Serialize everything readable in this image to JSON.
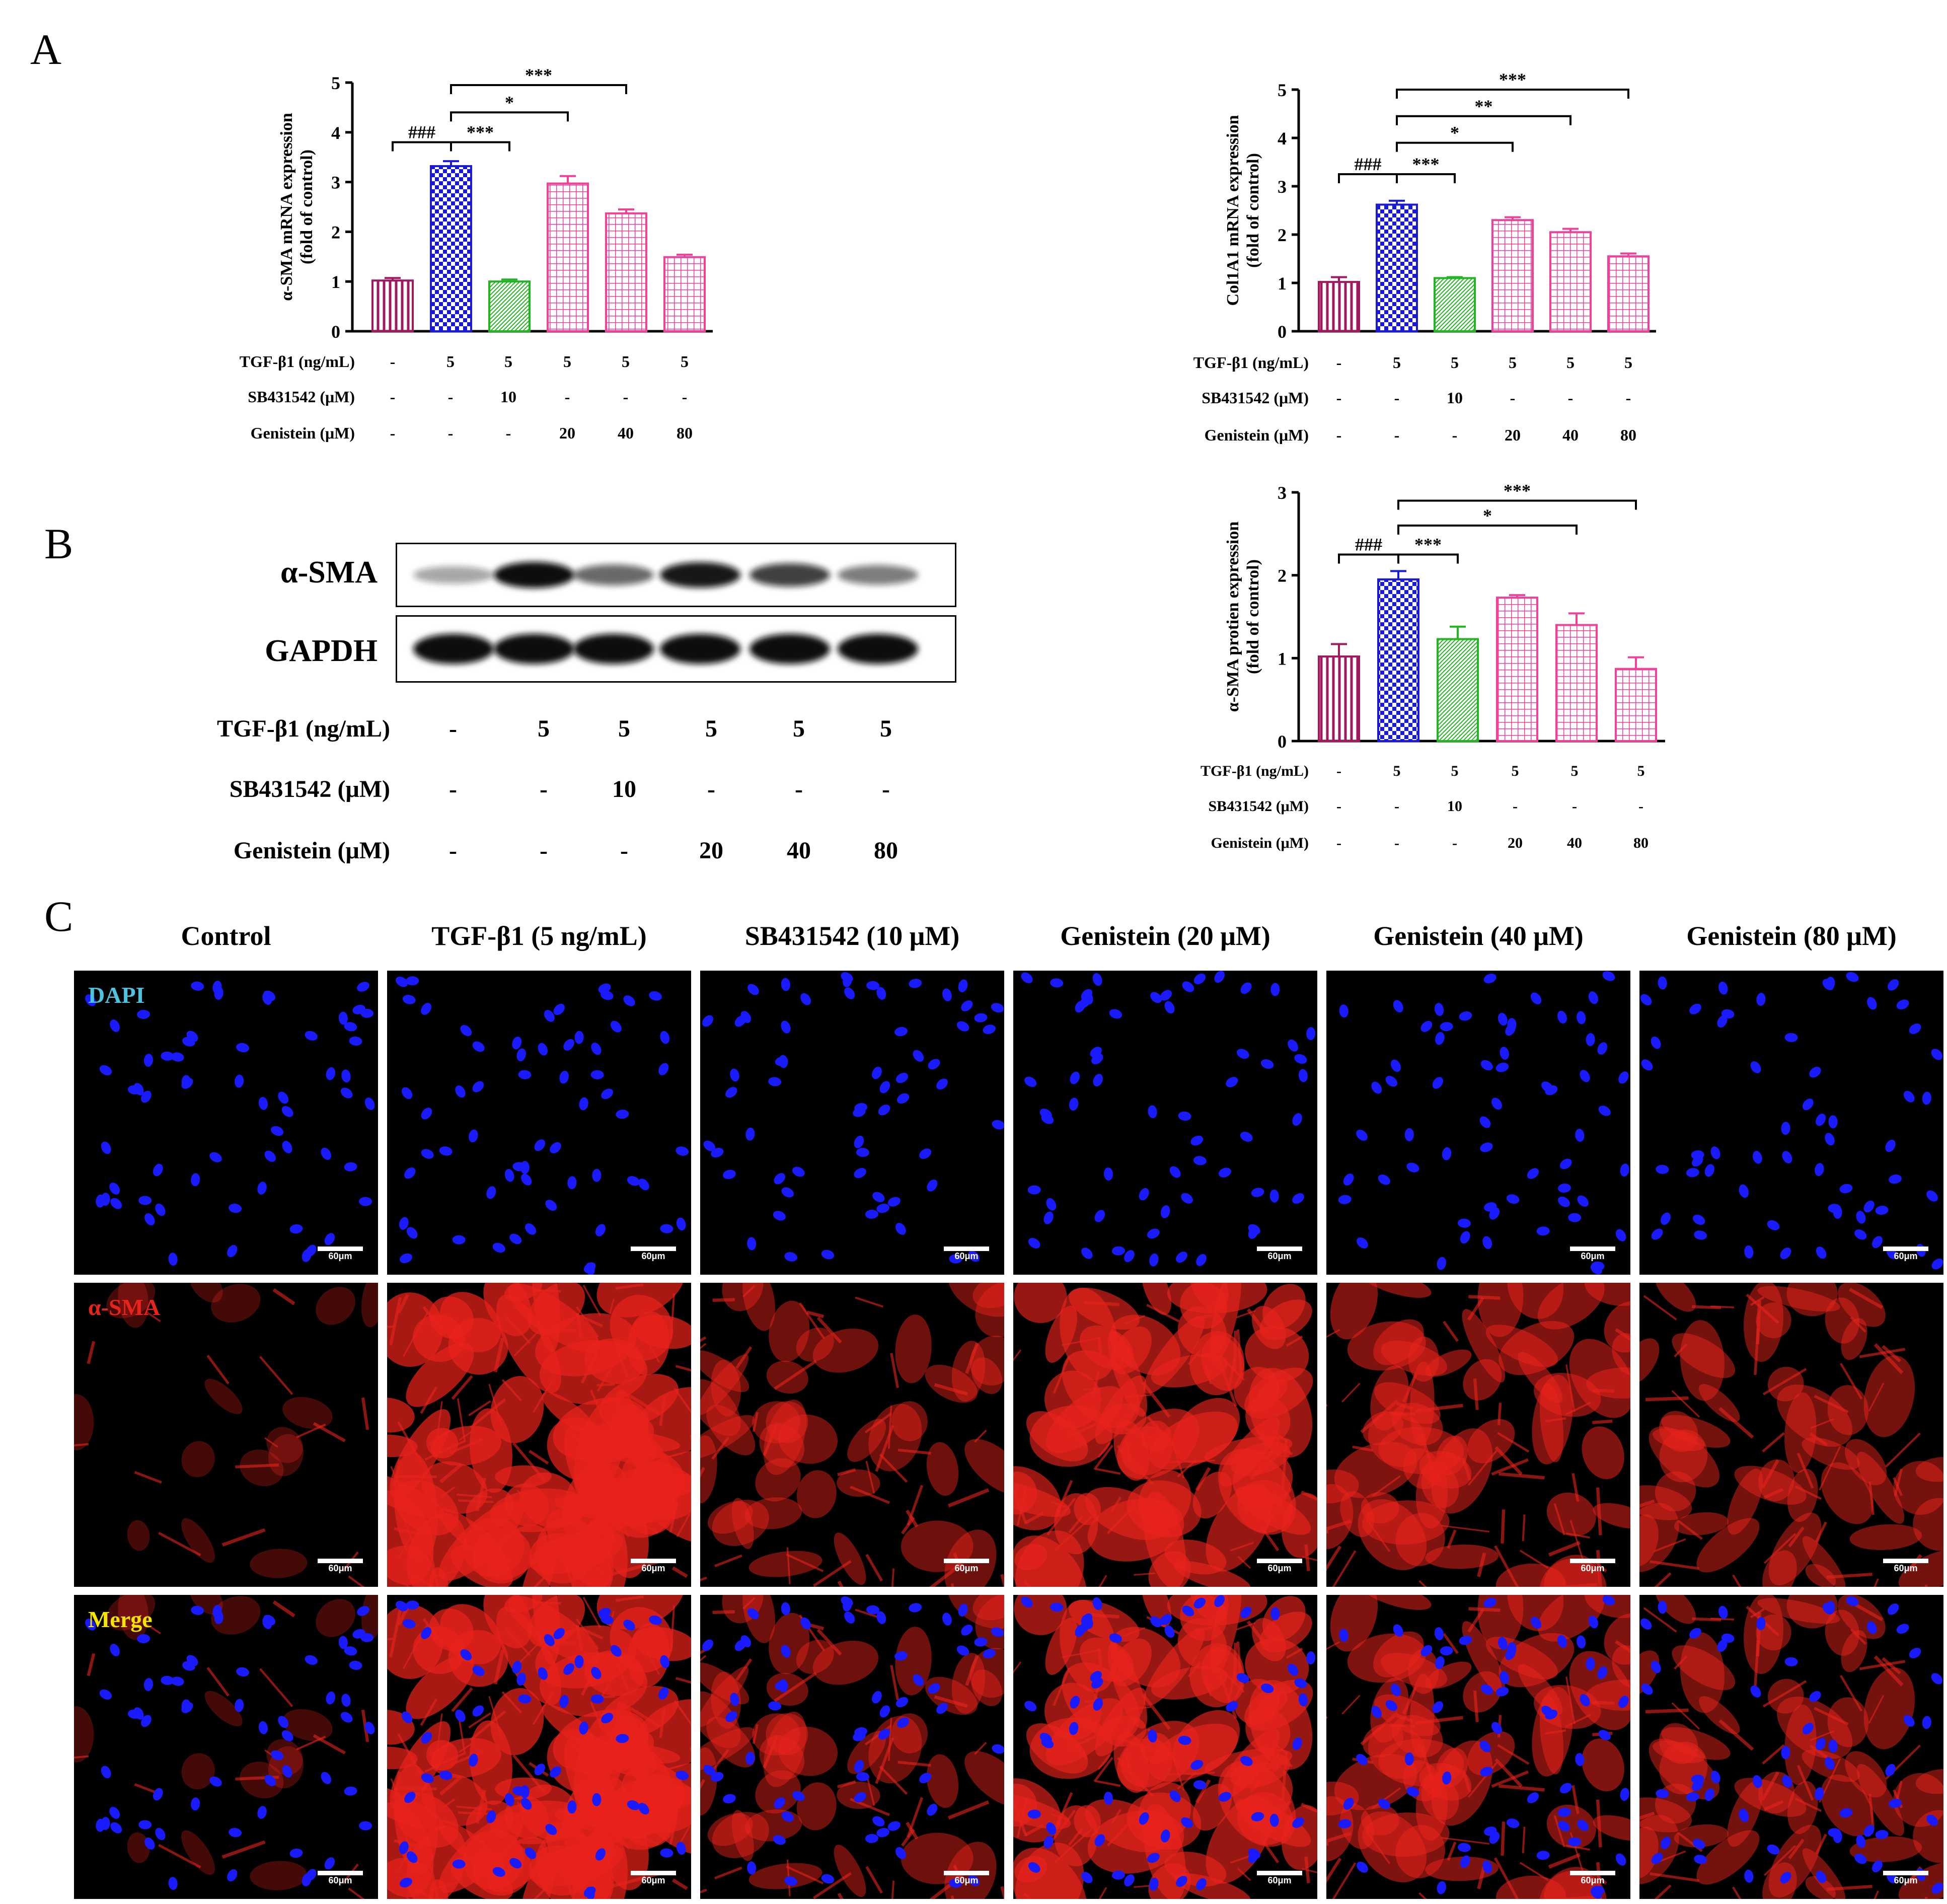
{
  "panels": {
    "a": "A",
    "b": "B",
    "c": "C"
  },
  "colors": {
    "control": "#a0185e",
    "tgf": "#1a1ad6",
    "sb": "#22b422",
    "gen": "#f0409a",
    "dapi_nucleus": "#1a1aff",
    "sma_red": "#e8231c",
    "dapi_label": "#4ec3e0",
    "sma_label": "#e8231c",
    "merge_label": "#f5e400"
  },
  "conditions": {
    "labels": [
      "TGF-β1 (ng/mL)",
      "SB431542 (μM)",
      "Genistein (μM)"
    ],
    "tgf": [
      "-",
      "5",
      "5",
      "5",
      "5",
      "5"
    ],
    "sb": [
      "-",
      "-",
      "10",
      "-",
      "-",
      "-"
    ],
    "gen": [
      "-",
      "-",
      "-",
      "20",
      "40",
      "80"
    ]
  },
  "chart_data": [
    {
      "id": "asma-mrna",
      "type": "bar",
      "ylabel": "α-SMA mRNA expression",
      "ylabel2": "(fold of control)",
      "ylim": [
        0,
        5
      ],
      "yticks": [
        0,
        1,
        2,
        3,
        4,
        5
      ],
      "values": [
        1.02,
        3.32,
        1.0,
        2.97,
        2.37,
        1.49
      ],
      "errors": [
        0.05,
        0.1,
        0.04,
        0.15,
        0.08,
        0.05
      ],
      "annotations": [
        {
          "from": 0,
          "to": 1,
          "y": 3.8,
          "label": "###"
        },
        {
          "from": 1,
          "to": 2,
          "y": 3.8,
          "label": "***"
        },
        {
          "from": 1,
          "to": 3,
          "y": 4.4,
          "label": "*"
        },
        {
          "from": 1,
          "to": 4,
          "y": 4.95,
          "label": "***"
        }
      ]
    },
    {
      "id": "col1a1-mrna",
      "type": "bar",
      "ylabel": "Col1A1 mRNA expression",
      "ylabel2": "(fold of control)",
      "ylim": [
        0,
        5
      ],
      "yticks": [
        0,
        1,
        2,
        3,
        4,
        5
      ],
      "values": [
        1.02,
        2.62,
        1.1,
        2.3,
        2.05,
        1.55
      ],
      "errors": [
        0.1,
        0.08,
        0.02,
        0.06,
        0.07,
        0.06
      ],
      "annotations": [
        {
          "from": 0,
          "to": 1,
          "y": 3.25,
          "label": "###"
        },
        {
          "from": 1,
          "to": 2,
          "y": 3.25,
          "label": "***"
        },
        {
          "from": 1,
          "to": 3,
          "y": 3.9,
          "label": "*"
        },
        {
          "from": 1,
          "to": 4,
          "y": 4.45,
          "label": "**"
        },
        {
          "from": 1,
          "to": 5,
          "y": 5.0,
          "label": "***"
        }
      ]
    },
    {
      "id": "asma-protein",
      "type": "bar",
      "ylabel": "α-SMA protien expression",
      "ylabel2": "(fold of control)",
      "ylim": [
        0,
        3
      ],
      "yticks": [
        0,
        1,
        2,
        3
      ],
      "values": [
        1.02,
        1.95,
        1.23,
        1.73,
        1.4,
        0.87
      ],
      "errors": [
        0.15,
        0.1,
        0.15,
        0.03,
        0.14,
        0.14
      ],
      "annotations": [
        {
          "from": 0,
          "to": 1,
          "y": 2.25,
          "label": "###"
        },
        {
          "from": 1,
          "to": 2,
          "y": 2.25,
          "label": "***"
        },
        {
          "from": 1,
          "to": 4,
          "y": 2.6,
          "label": "*"
        },
        {
          "from": 1,
          "to": 5,
          "y": 2.9,
          "label": "***"
        }
      ]
    }
  ],
  "blot": {
    "rows": [
      "α-SMA",
      "GAPDH"
    ],
    "asma_intensity": [
      0.25,
      1.0,
      0.55,
      0.95,
      0.75,
      0.45
    ],
    "gapdh_intensity": [
      1.0,
      1.0,
      1.0,
      1.0,
      1.0,
      1.0
    ]
  },
  "micro": {
    "columns": [
      "Control",
      "TGF-β1 (5 ng/mL)",
      "SB431542 (10 μM)",
      "Genistein (20 μM)",
      "Genistein (40 μM)",
      "Genistein (80 μM)"
    ],
    "rows": [
      "DAPI",
      "α-SMA",
      "Merge"
    ],
    "scale_bar": "60μm",
    "sma_coverage": [
      0.08,
      0.95,
      0.45,
      0.8,
      0.6,
      0.5
    ]
  }
}
